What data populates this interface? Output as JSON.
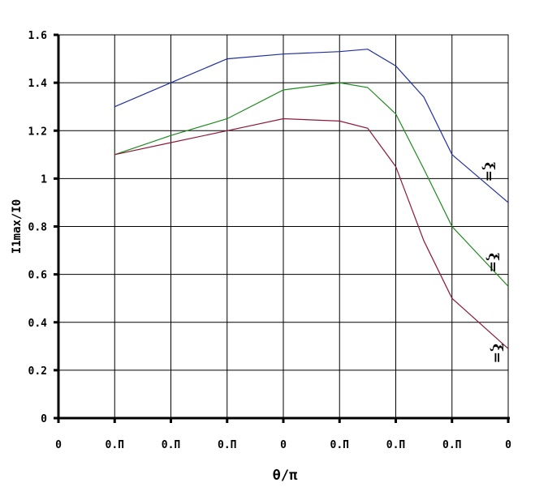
{
  "chart_data": {
    "type": "line",
    "xlabel": "θ/π",
    "ylabel": "I1max/I0",
    "xlim": [
      0,
      8
    ],
    "ylim": [
      0,
      1.6
    ],
    "grid": true,
    "x_tick_labels": [
      "0",
      "0.П",
      "0.П",
      "0.П",
      "0",
      "0.П",
      "0.П",
      "0.П",
      "0"
    ],
    "y_tick_labels": [
      "0",
      "0.2",
      "0.4",
      "0.6",
      "0.8",
      "1",
      "1.2",
      "1.4",
      "1.6"
    ],
    "series": [
      {
        "label": "ξ=",
        "color": "#1f2f9f",
        "points": [
          [
            1,
            1.3
          ],
          [
            2,
            1.4
          ],
          [
            3,
            1.5
          ],
          [
            4,
            1.52
          ],
          [
            5,
            1.53
          ],
          [
            5.5,
            1.54
          ],
          [
            6,
            1.47
          ],
          [
            6.5,
            1.34
          ],
          [
            7,
            1.1
          ],
          [
            8,
            0.9
          ]
        ]
      },
      {
        "label": "ξ=",
        "color": "#1e8a1e",
        "points": [
          [
            1,
            1.1
          ],
          [
            2,
            1.18
          ],
          [
            3,
            1.25
          ],
          [
            4,
            1.37
          ],
          [
            5,
            1.4
          ],
          [
            5.5,
            1.38
          ],
          [
            6,
            1.27
          ],
          [
            6.5,
            1.04
          ],
          [
            7,
            0.8
          ],
          [
            8,
            0.55
          ]
        ]
      },
      {
        "label": "ξ=",
        "color": "#8e1a3a",
        "points": [
          [
            1,
            1.1
          ],
          [
            2,
            1.15
          ],
          [
            3,
            1.2
          ],
          [
            4,
            1.25
          ],
          [
            5,
            1.24
          ],
          [
            5.5,
            1.21
          ],
          [
            6,
            1.05
          ],
          [
            6.5,
            0.74
          ],
          [
            7,
            0.5
          ],
          [
            8,
            0.29
          ]
        ]
      }
    ]
  }
}
